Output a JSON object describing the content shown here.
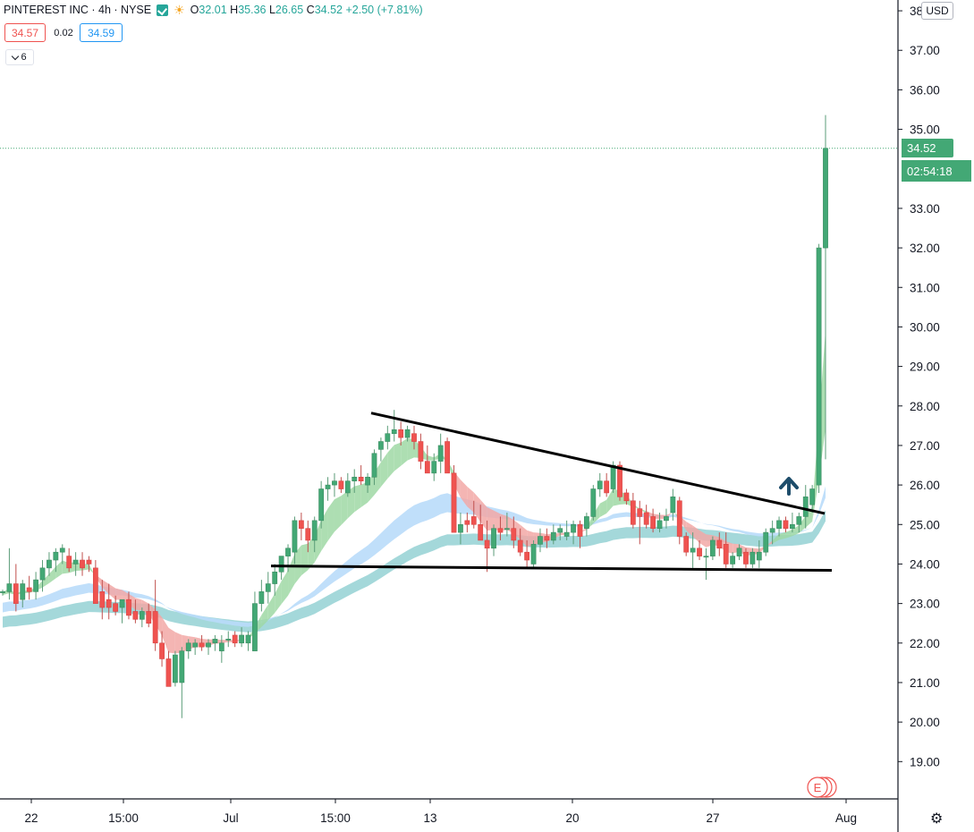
{
  "header": {
    "symbol": "PINTEREST INC · 4h · NYSE",
    "open_label": "O",
    "open": "32.01",
    "high_label": "H",
    "high": "35.36",
    "low_label": "L",
    "low": "26.65",
    "close_label": "C",
    "close": "34.52",
    "change": "+2.50 (+7.81%)"
  },
  "quote": {
    "bid": "34.57",
    "spread": "0.02",
    "ask": "34.59"
  },
  "indicators_toggle": {
    "count": "6"
  },
  "currency": "USD",
  "last_price_label": "34.52",
  "countdown": "02:54:18",
  "event_marker": "E",
  "colors": {
    "up": "#43a875",
    "down": "#ef5350",
    "ribbon_green": "#9fd8a4",
    "ribbon_red": "#f2a8a6",
    "ribbon_blue": "#b9dcf9",
    "ribbon_teal": "#9fd6d8",
    "grid_axis": "#131722",
    "last_price_line": "#43a875"
  },
  "chart_data": {
    "type": "candlestick",
    "symbol": "PINTEREST INC",
    "interval": "4h",
    "exchange": "NYSE",
    "y_axis": {
      "ticks": [
        "38.00",
        "37.00",
        "36.00",
        "35.00",
        "33.00",
        "32.00",
        "31.00",
        "30.00",
        "29.00",
        "28.00",
        "27.00",
        "26.00",
        "25.00",
        "24.00",
        "23.00",
        "22.00",
        "21.00",
        "20.00",
        "19.00"
      ],
      "range": [
        18.1,
        38.3
      ],
      "unit": "USD"
    },
    "x_axis": {
      "ticks": [
        "22",
        "15:00",
        "Jul",
        "15:00",
        "13",
        "20",
        "27",
        "Aug"
      ]
    },
    "last_price": 34.52,
    "candles": [
      [
        23.3,
        23.35,
        23.2,
        23.3
      ],
      [
        23.3,
        24.4,
        23.1,
        23.5
      ],
      [
        23.5,
        24.0,
        22.8,
        23.0
      ],
      [
        23.1,
        23.6,
        22.9,
        23.5
      ],
      [
        23.4,
        23.7,
        23.1,
        23.3
      ],
      [
        23.3,
        23.8,
        23.1,
        23.6
      ],
      [
        23.6,
        24.1,
        23.3,
        23.9
      ],
      [
        23.9,
        24.3,
        23.7,
        24.1
      ],
      [
        24.1,
        24.4,
        23.8,
        24.3
      ],
      [
        24.3,
        24.5,
        24.0,
        24.4
      ],
      [
        24.2,
        24.4,
        23.8,
        23.9
      ],
      [
        24.0,
        24.3,
        23.7,
        24.1
      ],
      [
        24.1,
        24.3,
        23.7,
        23.9
      ],
      [
        24.1,
        24.2,
        23.8,
        24.0
      ],
      [
        23.9,
        24.1,
        23.0,
        23.0
      ],
      [
        23.3,
        23.6,
        22.6,
        22.9
      ],
      [
        23.1,
        23.5,
        22.6,
        22.9
      ],
      [
        23.0,
        23.2,
        22.7,
        22.8
      ],
      [
        22.9,
        23.1,
        22.5,
        23.1
      ],
      [
        23.1,
        23.3,
        22.6,
        22.7
      ],
      [
        22.8,
        23.1,
        22.5,
        22.6
      ],
      [
        22.6,
        22.9,
        22.4,
        22.8
      ],
      [
        22.8,
        23.0,
        22.4,
        22.5
      ],
      [
        22.8,
        23.6,
        21.8,
        22.0
      ],
      [
        22.0,
        22.3,
        21.4,
        21.6
      ],
      [
        21.6,
        21.8,
        20.9,
        20.9
      ],
      [
        21.0,
        21.8,
        20.9,
        21.7
      ],
      [
        21.0,
        21.9,
        20.1,
        21.8
      ],
      [
        21.8,
        22.1,
        21.6,
        22.0
      ],
      [
        21.9,
        22.1,
        21.7,
        22.0
      ],
      [
        22.0,
        22.2,
        21.8,
        21.9
      ],
      [
        21.9,
        22.1,
        21.7,
        22.0
      ],
      [
        22.0,
        22.2,
        21.8,
        22.1
      ],
      [
        21.8,
        22.2,
        21.5,
        22.0
      ],
      [
        22.1,
        22.3,
        21.9,
        22.1
      ],
      [
        22.2,
        22.3,
        21.9,
        22.0
      ],
      [
        22.0,
        22.4,
        21.9,
        22.2
      ],
      [
        22.0,
        22.3,
        21.8,
        22.2
      ],
      [
        21.8,
        23.3,
        21.8,
        23.0
      ],
      [
        23.0,
        23.6,
        22.8,
        23.3
      ],
      [
        23.3,
        23.8,
        23.0,
        23.5
      ],
      [
        23.5,
        24.0,
        23.2,
        23.8
      ],
      [
        23.8,
        24.2,
        23.6,
        24.2
      ],
      [
        24.2,
        24.5,
        23.8,
        24.4
      ],
      [
        24.3,
        25.2,
        24.0,
        25.1
      ],
      [
        25.1,
        25.3,
        24.6,
        24.9
      ],
      [
        24.9,
        25.1,
        24.3,
        24.6
      ],
      [
        24.6,
        25.2,
        24.3,
        25.1
      ],
      [
        25.1,
        26.1,
        24.9,
        25.9
      ],
      [
        25.9,
        26.2,
        25.6,
        26.0
      ],
      [
        26.0,
        26.3,
        25.7,
        26.1
      ],
      [
        26.1,
        26.2,
        25.8,
        25.9
      ],
      [
        25.8,
        26.3,
        25.7,
        26.1
      ],
      [
        26.1,
        26.4,
        25.8,
        26.2
      ],
      [
        26.2,
        26.5,
        26.0,
        26.1
      ],
      [
        26.0,
        26.3,
        25.8,
        26.2
      ],
      [
        26.2,
        26.9,
        26.0,
        26.8
      ],
      [
        26.9,
        27.2,
        26.6,
        27.1
      ],
      [
        27.1,
        27.5,
        26.9,
        27.3
      ],
      [
        27.3,
        27.9,
        27.1,
        27.4
      ],
      [
        27.4,
        27.6,
        27.0,
        27.2
      ],
      [
        27.2,
        27.5,
        27.1,
        27.4
      ],
      [
        27.3,
        27.5,
        26.9,
        27.1
      ],
      [
        27.1,
        27.3,
        26.4,
        26.6
      ],
      [
        26.6,
        27.0,
        26.3,
        26.3
      ],
      [
        26.3,
        26.8,
        26.1,
        26.6
      ],
      [
        26.6,
        27.3,
        26.3,
        27.0
      ],
      [
        27.1,
        27.2,
        26.3,
        26.3
      ],
      [
        26.3,
        26.5,
        24.8,
        24.8
      ],
      [
        24.8,
        25.3,
        24.5,
        25.0
      ],
      [
        25.1,
        25.3,
        24.8,
        25.0
      ],
      [
        25.2,
        25.6,
        24.9,
        25.0
      ],
      [
        25.0,
        25.5,
        24.6,
        24.6
      ],
      [
        24.6,
        25.1,
        23.8,
        24.4
      ],
      [
        24.4,
        25.0,
        24.2,
        24.9
      ],
      [
        24.9,
        25.2,
        24.6,
        24.8
      ],
      [
        24.9,
        25.3,
        24.7,
        24.9
      ],
      [
        24.9,
        25.2,
        24.4,
        24.6
      ],
      [
        24.6,
        24.9,
        24.2,
        24.3
      ],
      [
        24.3,
        24.6,
        23.9,
        24.1
      ],
      [
        24.0,
        24.6,
        23.9,
        24.5
      ],
      [
        24.5,
        24.9,
        24.3,
        24.7
      ],
      [
        24.7,
        24.9,
        24.4,
        24.6
      ],
      [
        24.6,
        25.0,
        24.5,
        24.8
      ],
      [
        24.8,
        25.0,
        24.6,
        24.9
      ],
      [
        24.7,
        25.1,
        24.6,
        24.8
      ],
      [
        24.8,
        25.1,
        24.5,
        25.0
      ],
      [
        25.0,
        25.1,
        24.4,
        24.7
      ],
      [
        24.9,
        25.3,
        24.7,
        25.2
      ],
      [
        25.2,
        26.0,
        25.1,
        25.9
      ],
      [
        25.9,
        26.3,
        25.7,
        26.1
      ],
      [
        26.1,
        26.3,
        25.7,
        25.8
      ],
      [
        25.9,
        26.6,
        25.8,
        26.5
      ],
      [
        26.5,
        26.6,
        25.6,
        25.7
      ],
      [
        25.8,
        25.9,
        25.5,
        25.6
      ],
      [
        25.6,
        25.8,
        24.9,
        25.0
      ],
      [
        25.4,
        25.6,
        24.5,
        25.2
      ],
      [
        25.3,
        25.5,
        24.9,
        25.0
      ],
      [
        25.2,
        25.4,
        24.8,
        24.9
      ],
      [
        24.9,
        25.3,
        24.8,
        25.1
      ],
      [
        25.1,
        25.4,
        24.9,
        25.2
      ],
      [
        25.3,
        25.9,
        25.1,
        25.7
      ],
      [
        25.6,
        25.7,
        24.5,
        24.7
      ],
      [
        24.7,
        24.8,
        24.2,
        24.3
      ],
      [
        24.3,
        24.8,
        23.9,
        24.4
      ],
      [
        24.4,
        24.6,
        24.1,
        24.2
      ],
      [
        24.2,
        24.4,
        23.6,
        24.2
      ],
      [
        24.2,
        24.7,
        24.1,
        24.6
      ],
      [
        24.6,
        24.8,
        24.2,
        24.4
      ],
      [
        24.5,
        24.8,
        23.9,
        24.0
      ],
      [
        24.0,
        24.3,
        23.9,
        24.2
      ],
      [
        24.2,
        24.5,
        24.1,
        24.4
      ],
      [
        24.3,
        24.4,
        23.9,
        24.0
      ],
      [
        24.0,
        24.4,
        23.9,
        24.3
      ],
      [
        24.1,
        24.6,
        23.9,
        24.3
      ],
      [
        24.3,
        24.9,
        24.2,
        24.8
      ],
      [
        24.8,
        25.1,
        24.5,
        24.9
      ],
      [
        24.9,
        25.2,
        24.7,
        25.1
      ],
      [
        25.1,
        25.2,
        24.8,
        24.9
      ],
      [
        24.9,
        25.3,
        24.8,
        25.0
      ],
      [
        25.0,
        25.3,
        24.8,
        25.2
      ],
      [
        25.2,
        26.0,
        24.9,
        25.7
      ],
      [
        25.5,
        26.0,
        25.3,
        25.9
      ],
      [
        26.0,
        32.1,
        25.8,
        32.0
      ],
      [
        32.0,
        35.36,
        26.65,
        34.52
      ]
    ],
    "overlays": [
      {
        "name": "fast ribbon"
      },
      {
        "name": "medium ribbon"
      },
      {
        "name": "slow ribbon"
      }
    ],
    "trendlines": [
      {
        "from": [
          "Jul 8 (≈)",
          27.8
        ],
        "to": [
          "Jul 30 (≈)",
          25.3
        ]
      },
      {
        "from": [
          "Jul 6 (≈)",
          23.95
        ],
        "to": [
          "Jul 31 (≈)",
          23.85
        ]
      }
    ],
    "annotations": [
      {
        "type": "arrow-up"
      },
      {
        "type": "event",
        "text": "E"
      }
    ]
  }
}
